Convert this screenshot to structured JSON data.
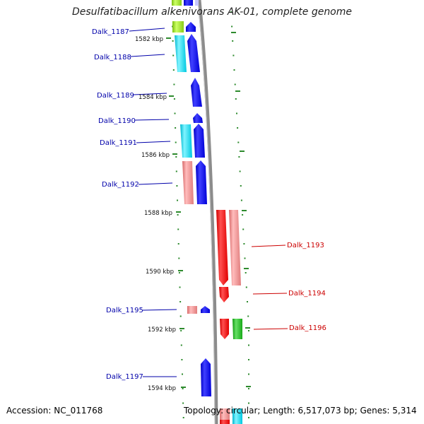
{
  "title": "Desulfatibacillum alkenivorans AK-01, complete genome",
  "accession_text": "Accession: NC_011768",
  "summary_text": "Topology: circular; Length: 6,517,073 bp; Genes: 5,314",
  "colors": {
    "backbone": "#8c8c8c",
    "tick": "#2e8b2e",
    "label_left": "#0000aa",
    "label_right": "#cc0000",
    "gene_blue": "#0000ee",
    "gene_cyan": "#00d8e8",
    "gene_red": "#ee0000",
    "gene_pink": "#f08a8a",
    "gene_green": "#22bb22",
    "gene_yellowgreen": "#99dd22"
  },
  "kbp_markers": [
    {
      "label": "1582 kbp"
    },
    {
      "label": "1584 kbp"
    },
    {
      "label": "1586 kbp"
    },
    {
      "label": "1588 kbp"
    },
    {
      "label": "1590 kbp"
    },
    {
      "label": "1592 kbp"
    },
    {
      "label": "1594 kbp"
    }
  ],
  "gene_labels": [
    {
      "text": "Dalk_1187",
      "side": "left"
    },
    {
      "text": "Dalk_1188",
      "side": "left"
    },
    {
      "text": "Dalk_1189",
      "side": "left"
    },
    {
      "text": "Dalk_1190",
      "side": "left"
    },
    {
      "text": "Dalk_1191",
      "side": "left"
    },
    {
      "text": "Dalk_1192",
      "side": "left"
    },
    {
      "text": "Dalk_1193",
      "side": "right"
    },
    {
      "text": "Dalk_1194",
      "side": "right"
    },
    {
      "text": "Dalk_1195",
      "side": "left"
    },
    {
      "text": "Dalk_1196",
      "side": "right"
    },
    {
      "text": "Dalk_1197",
      "side": "left"
    }
  ]
}
